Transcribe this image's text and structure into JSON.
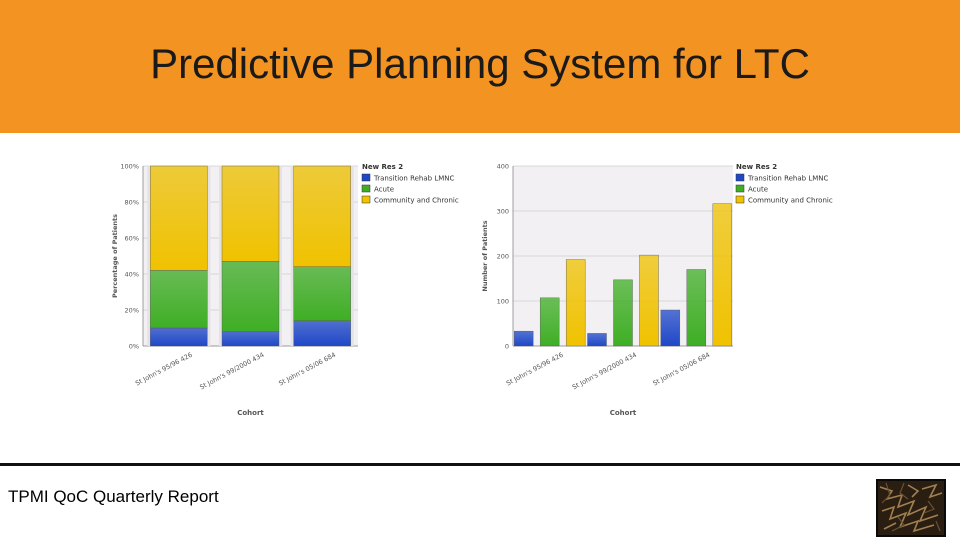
{
  "slide": {
    "title": "Predictive Planning System for LTC",
    "footer": "TPMI QoC Quarterly Report"
  },
  "colors": {
    "header_bg": "#f39321",
    "transition": "#1f48c8",
    "acute": "#3fae25",
    "community": "#f0c200"
  },
  "chart_data": [
    {
      "type": "bar",
      "stacked": true,
      "percent": true,
      "categories": [
        "St John's 95/96 426",
        "St John's 99/2000 434",
        "St John's 05/06 684"
      ],
      "series": [
        {
          "name": "Transition Rehab LMNC",
          "values": [
            10,
            8,
            14
          ]
        },
        {
          "name": "Acute",
          "values": [
            32,
            39,
            30
          ]
        },
        {
          "name": "Community and Chronic",
          "values": [
            58,
            53,
            56
          ]
        }
      ],
      "xlabel": "Cohort",
      "ylabel": "Percentage of Patients",
      "ylim": [
        0,
        100
      ],
      "yticks": [
        "0%",
        "20%",
        "40%",
        "60%",
        "80%",
        "100%"
      ],
      "legend_title": "New Res 2",
      "legend_position": "right",
      "grid": true
    },
    {
      "type": "bar",
      "stacked": false,
      "categories": [
        "St John's 95/96 426",
        "St John's 99/2000 434",
        "St John's 05/06 684"
      ],
      "series": [
        {
          "name": "Transition Rehab LMNC",
          "values": [
            33,
            28,
            80
          ]
        },
        {
          "name": "Acute",
          "values": [
            107,
            147,
            170
          ]
        },
        {
          "name": "Community and Chronic",
          "values": [
            192,
            202,
            316
          ]
        }
      ],
      "xlabel": "Cohort",
      "ylabel": "Number of Patients",
      "ylim": [
        0,
        400
      ],
      "yticks": [
        "0",
        "100",
        "200",
        "300",
        "400"
      ],
      "legend_title": "New Res 2",
      "legend_position": "right",
      "grid": true
    }
  ]
}
